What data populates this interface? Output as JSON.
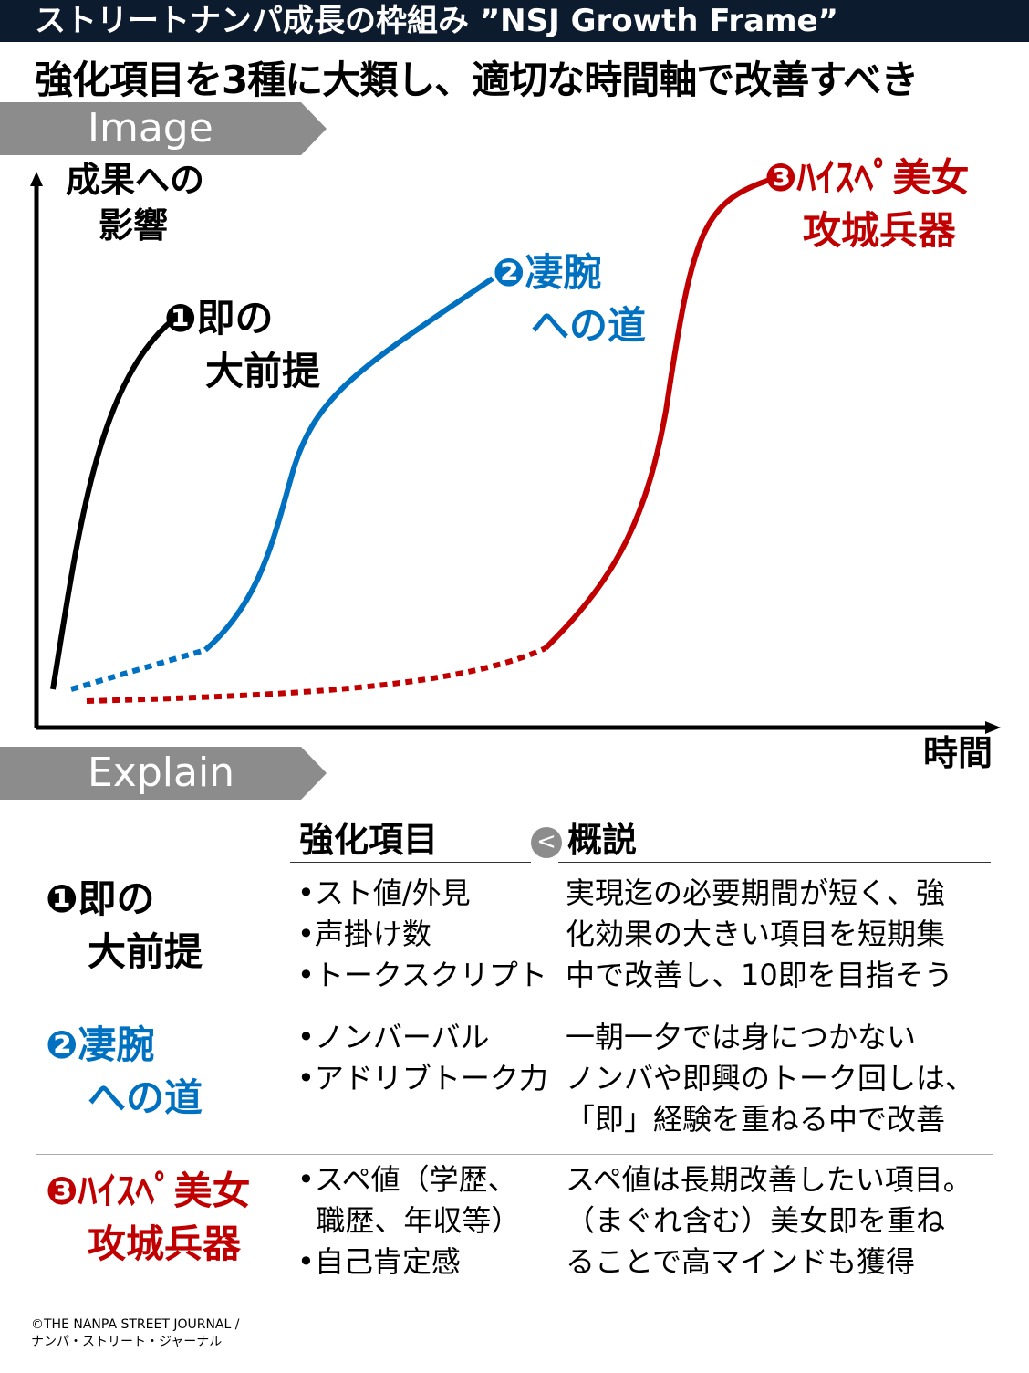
{
  "header": {
    "title": "ストリートナンパ成長の枠組み ”NSJ Growth Frame”",
    "headline": "強化項目を3種に大類し、適切な時間軸で改善すべき"
  },
  "sections": {
    "image": "Image",
    "explain": "Explain"
  },
  "graph": {
    "y_label_1": "成果への",
    "y_label_2": "影響",
    "x_label": "時間",
    "labels": [
      {
        "line1": "❶即の",
        "line2": "大前提",
        "color": "#000000"
      },
      {
        "line1": "❷凄腕",
        "line2": "への道",
        "color": "#0070c0"
      },
      {
        "line1": "❸ﾊｲｽﾍﾟ美女",
        "line2": "攻城兵器",
        "color": "#c00000"
      }
    ]
  },
  "table": {
    "col1": "強化項目",
    "col2": "概説",
    "compare_symbol": "<",
    "rows": [
      {
        "name1": "❶即の",
        "name2": "大前提",
        "items": [
          "•スト値/外見",
          "•声掛け数",
          "•トークスクリプト"
        ],
        "desc": [
          "実現迄の必要期間が短く、強",
          "化効果の大きい項目を短期集",
          "中で改善し、10即を目指そう"
        ]
      },
      {
        "name1": "❷凄腕",
        "name2": "への道",
        "items": [
          "•ノンバーバル",
          "•アドリブトーク力"
        ],
        "desc": [
          "一朝一夕では身につかない",
          "ノンバや即興のトーク回しは、",
          "「即」経験を重ねる中で改善"
        ]
      },
      {
        "name1": "❸ﾊｲｽﾍﾟ美女",
        "name2": "攻城兵器",
        "items": [
          "•スペ値（学歴、",
          "  職歴、年収等）",
          "•自己肯定感"
        ],
        "desc": [
          "スペ値は長期改善したい項目。",
          "（まぐれ含む）美女即を重ね",
          "ることで高マインドも獲得"
        ]
      }
    ]
  },
  "footer": {
    "line1": "©THE NANPA STREET JOURNAL /",
    "line2": "ナンパ・ストリート・ジャーナル"
  },
  "colors": {
    "black": "#000000",
    "blue": "#0070c0",
    "red": "#c00000",
    "navy": "#0d1b2e",
    "banner": "#8c8c8c"
  }
}
